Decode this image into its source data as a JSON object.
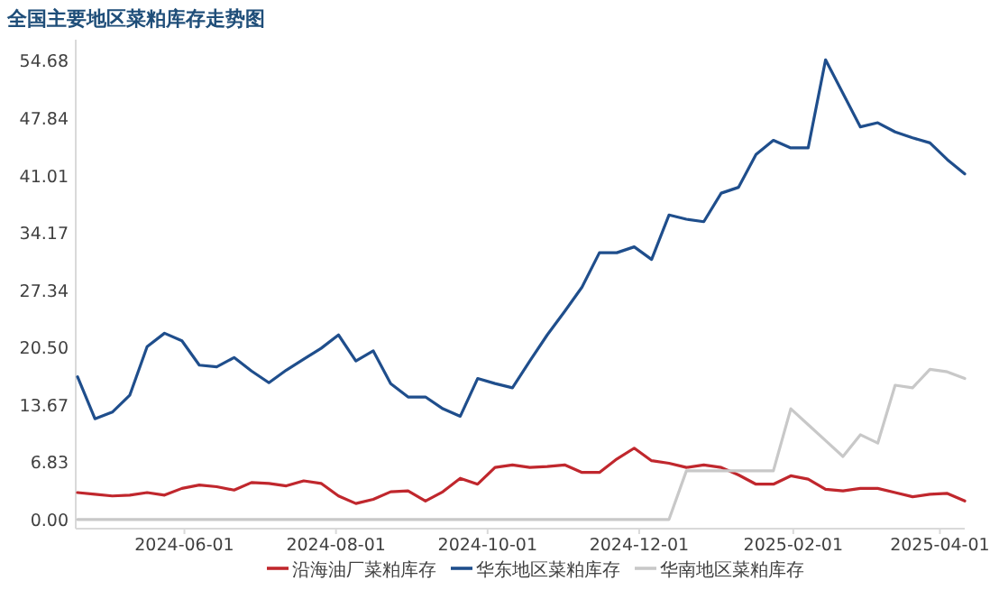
{
  "chart_data": {
    "type": "line",
    "title": "全国主要地区菜粕库存走势图",
    "x": [
      "2024-04-19",
      "2024-04-26",
      "2024-05-03",
      "2024-05-10",
      "2024-05-17",
      "2024-05-24",
      "2024-05-31",
      "2024-06-07",
      "2024-06-14",
      "2024-06-21",
      "2024-06-28",
      "2024-07-05",
      "2024-07-12",
      "2024-07-19",
      "2024-07-26",
      "2024-08-02",
      "2024-08-09",
      "2024-08-16",
      "2024-08-23",
      "2024-08-30",
      "2024-09-06",
      "2024-09-13",
      "2024-09-20",
      "2024-09-27",
      "2024-10-04",
      "2024-10-11",
      "2024-10-18",
      "2024-10-25",
      "2024-11-01",
      "2024-11-08",
      "2024-11-15",
      "2024-11-22",
      "2024-11-29",
      "2024-12-06",
      "2024-12-13",
      "2024-12-20",
      "2024-12-27",
      "2025-01-03",
      "2025-01-10",
      "2025-01-17",
      "2025-01-24",
      "2025-01-31",
      "2025-02-07",
      "2025-02-14",
      "2025-02-21",
      "2025-02-28",
      "2025-03-07",
      "2025-03-14",
      "2025-03-21",
      "2025-03-28",
      "2025-04-04",
      "2025-04-11"
    ],
    "series": [
      {
        "name": "沿海油厂菜粕库存",
        "color": "#c0272d",
        "values": [
          3.2,
          3.0,
          2.8,
          2.9,
          3.2,
          2.9,
          3.7,
          4.1,
          3.9,
          3.5,
          4.4,
          4.3,
          4.0,
          4.6,
          4.3,
          2.8,
          1.9,
          2.4,
          3.3,
          3.4,
          2.2,
          3.3,
          4.9,
          4.2,
          6.2,
          6.5,
          6.2,
          6.3,
          6.5,
          5.6,
          5.6,
          7.2,
          8.5,
          7.0,
          6.7,
          6.2,
          6.5,
          6.2,
          5.3,
          4.2,
          4.2,
          5.2,
          4.8,
          3.6,
          3.4,
          3.7,
          3.7,
          3.2,
          2.7,
          3.0,
          3.1,
          2.2
        ]
      },
      {
        "name": "华东地区菜粕库存",
        "color": "#1f4e8c",
        "values": [
          17.0,
          12.0,
          12.8,
          14.8,
          20.6,
          22.2,
          21.3,
          18.4,
          18.2,
          19.3,
          17.7,
          16.3,
          17.8,
          19.1,
          20.4,
          22.0,
          18.9,
          20.1,
          16.2,
          14.6,
          14.6,
          13.2,
          12.3,
          16.8,
          16.2,
          15.7,
          18.9,
          22.0,
          24.8,
          27.7,
          31.8,
          31.8,
          32.5,
          31.0,
          36.3,
          35.8,
          35.5,
          38.9,
          39.6,
          43.5,
          45.2,
          44.3,
          44.3,
          54.8,
          50.8,
          46.8,
          47.3,
          46.2,
          45.5,
          44.9,
          42.9,
          41.2
        ]
      },
      {
        "name": "华南地区菜粕库存",
        "color": "#c8c8c8",
        "values": [
          0,
          0,
          0,
          0,
          0,
          0,
          0,
          0,
          0,
          0,
          0,
          0,
          0,
          0,
          0,
          0,
          0,
          0,
          0,
          0,
          0,
          0,
          0,
          0,
          0,
          0,
          0,
          0,
          0,
          0,
          0,
          0,
          0,
          0,
          0,
          5.8,
          5.8,
          5.8,
          5.8,
          5.8,
          5.8,
          13.2,
          11.3,
          9.4,
          7.5,
          10.1,
          9.1,
          16.0,
          15.7,
          17.9,
          17.6,
          16.8
        ]
      }
    ],
    "xlim": [
      "2024-04-19",
      "2025-04-11"
    ],
    "xticks": [
      "2024-06-01",
      "2024-08-01",
      "2024-10-01",
      "2024-12-01",
      "2025-02-01",
      "2025-04-01"
    ],
    "ylim": [
      -1.1,
      57.2
    ],
    "yticks": [
      {
        "value": 0,
        "label": "0.00"
      },
      6.83,
      {
        "value": 13.67,
        "label": "13.67"
      },
      {
        "value": 20.5,
        "label": "20.50"
      },
      27.34,
      34.17,
      41.01,
      47.84,
      54.68
    ],
    "legend": "bottom",
    "grid": false,
    "line_style": "solid",
    "marker": "none"
  }
}
